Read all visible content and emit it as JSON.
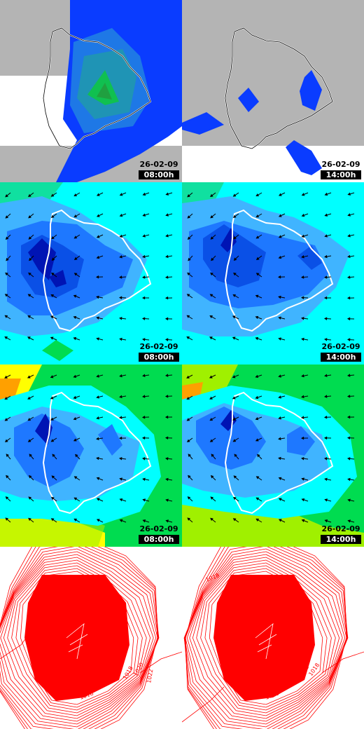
{
  "colors": {
    "land_gray": "#b4b4b4",
    "white": "#ffffff",
    "rain_blue": "#0a3cff",
    "rain_mid": "#1e78e6",
    "rain_teal": "#20a0a0",
    "rain_green": "#10c050",
    "cyan": "#00ffff",
    "light_blue": "#40b4ff",
    "mid_blue": "#1e78ff",
    "blue": "#0a50e6",
    "dark_blue": "#0014b4",
    "green": "#00dc50",
    "lime": "#a0f000",
    "yellow": "#ffff00",
    "orange": "#ffa000",
    "pressure_red": "#ff0000",
    "coastline": "#ffffff"
  },
  "panels": [
    {
      "id": "rain-08",
      "layer": "precipitation",
      "date": "26-02-09",
      "time": "08:00h"
    },
    {
      "id": "rain-14",
      "layer": "precipitation",
      "date": "26-02-09",
      "time": "14:00h"
    },
    {
      "id": "wind-surface-08",
      "layer": "wind",
      "date": "26-02-09",
      "time": "08:00h"
    },
    {
      "id": "wind-surface-14",
      "layer": "wind",
      "date": "26-02-09",
      "time": "14:00h"
    },
    {
      "id": "wind-upper-08",
      "layer": "wind",
      "date": "26-02-09",
      "time": "08:00h"
    },
    {
      "id": "wind-upper-14",
      "layer": "wind",
      "date": "26-02-09",
      "time": "14:00h"
    },
    {
      "id": "pressure-08",
      "layer": "pressure",
      "labels": [
        "1018",
        "1020",
        "1022",
        "1018"
      ]
    },
    {
      "id": "pressure-14",
      "layer": "pressure",
      "labels": [
        "1018",
        "1018",
        "1018",
        "1018"
      ]
    }
  ]
}
